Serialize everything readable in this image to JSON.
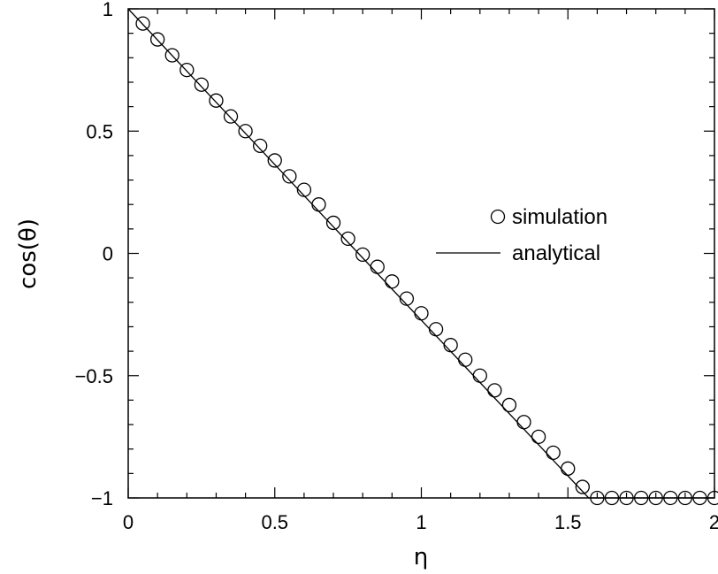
{
  "chart_data": {
    "type": "scatter",
    "xlabel": "η",
    "ylabel": "cos(θ)",
    "xlim": [
      0,
      2
    ],
    "ylim": [
      -1,
      1
    ],
    "x_ticks": [
      0,
      0.5,
      1,
      1.5,
      2
    ],
    "x_tick_labels": [
      "0",
      "0.5",
      "1",
      "1.5",
      "2"
    ],
    "y_ticks": [
      -1,
      -0.5,
      0,
      0.5,
      1
    ],
    "y_tick_labels": [
      "−1",
      "−0.5",
      "0",
      "0.5",
      "1"
    ],
    "grid": false,
    "legend_position": "right-middle",
    "series": [
      {
        "name": "simulation",
        "marker": "open-circle",
        "x": [
          0.05,
          0.1,
          0.15,
          0.2,
          0.25,
          0.3,
          0.35,
          0.4,
          0.45,
          0.5,
          0.55,
          0.6,
          0.65,
          0.7,
          0.75,
          0.8,
          0.85,
          0.9,
          0.95,
          1.0,
          1.05,
          1.1,
          1.15,
          1.2,
          1.25,
          1.3,
          1.35,
          1.4,
          1.45,
          1.5,
          1.55,
          1.6,
          1.65,
          1.7,
          1.75,
          1.8,
          1.85,
          1.9,
          1.95,
          2.0
        ],
        "y": [
          0.94,
          0.875,
          0.81,
          0.75,
          0.69,
          0.625,
          0.56,
          0.5,
          0.44,
          0.38,
          0.315,
          0.26,
          0.2,
          0.125,
          0.06,
          -0.005,
          -0.055,
          -0.115,
          -0.185,
          -0.245,
          -0.31,
          -0.375,
          -0.435,
          -0.5,
          -0.56,
          -0.62,
          -0.69,
          -0.75,
          -0.815,
          -0.88,
          -0.955,
          -1.0,
          -1.0,
          -1.0,
          -1.0,
          -1.0,
          -1.0,
          -1.0,
          -1.0,
          -1.0
        ]
      },
      {
        "name": "analytical",
        "marker": "line",
        "x": [
          0,
          1.5708,
          2.0
        ],
        "y": [
          1,
          -1,
          -1
        ]
      }
    ]
  }
}
